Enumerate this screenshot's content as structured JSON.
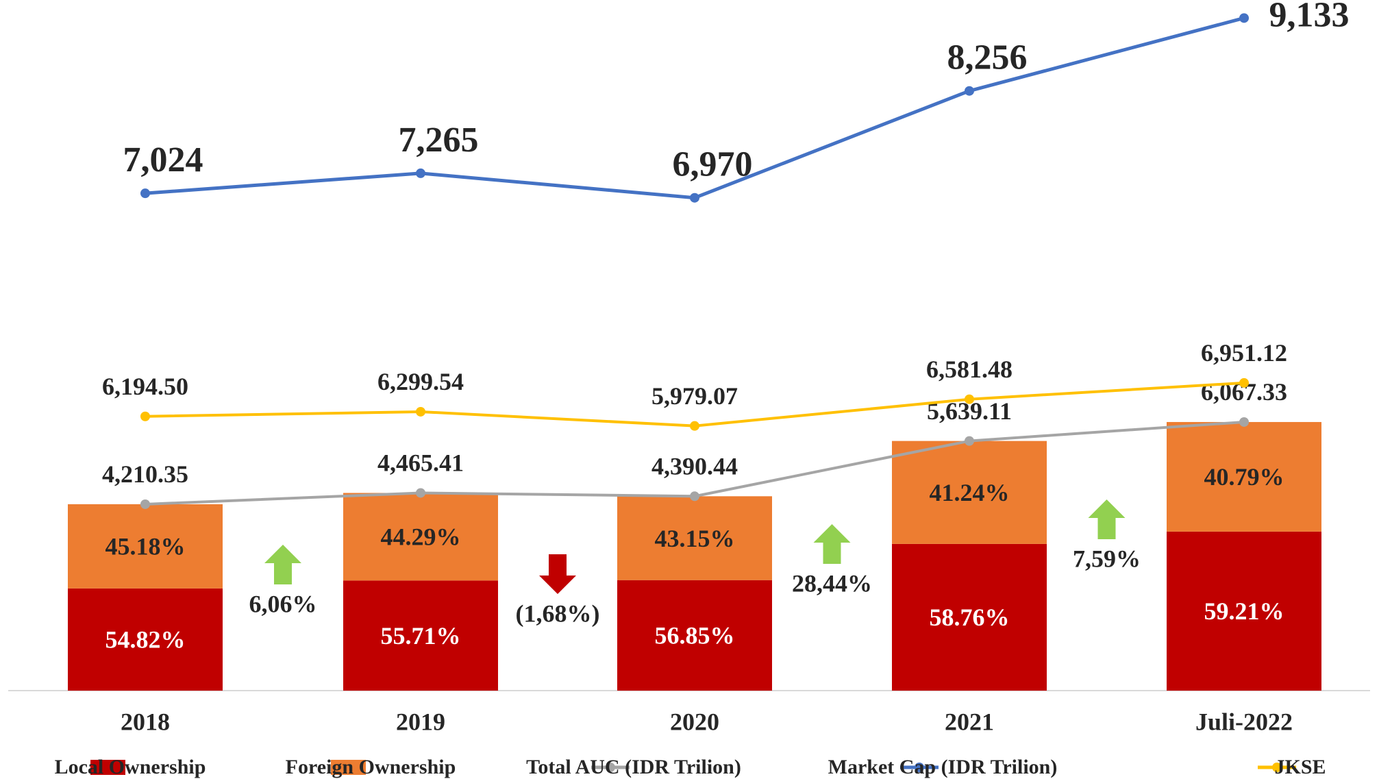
{
  "chart_data": {
    "type": "bar",
    "categories": [
      "2018",
      "2019",
      "2020",
      "2021",
      "Juli-2022"
    ],
    "ylim": [
      0,
      15600
    ],
    "y2lim": [
      1040,
      9350
    ],
    "series": [
      {
        "name": "Local Ownership",
        "type": "bar",
        "stack": true,
        "color": "#c00000",
        "values": [
          54.82,
          55.71,
          56.85,
          58.76,
          59.21
        ],
        "value_labels": [
          "54.82%",
          "55.71%",
          "56.85%",
          "58.76%",
          "59.21%"
        ]
      },
      {
        "name": "Foreign Ownership",
        "type": "bar",
        "stack": true,
        "color": "#ed7d31",
        "values": [
          45.18,
          44.29,
          43.15,
          41.24,
          40.79
        ],
        "value_labels": [
          "45.18%",
          "44.29%",
          "43.15%",
          "41.24%",
          "40.79%"
        ]
      },
      {
        "name": "Total AUC (IDR Trilion)",
        "type": "line",
        "color": "#a5a5a5",
        "values": [
          4210.35,
          4465.41,
          4390.44,
          5639.11,
          6067.33
        ],
        "value_labels": [
          "4,210.35",
          "4,465.41",
          "4,390.44",
          "5,639.11",
          "6,067.33"
        ]
      },
      {
        "name": "Market Cap (IDR Trilion)",
        "type": "line",
        "axis": "y2",
        "color": "#4472c4",
        "values": [
          7024,
          7265,
          6970,
          8256,
          9133
        ],
        "value_labels": [
          "7,024",
          "7,265",
          "6,970",
          "8,256",
          "9,133"
        ]
      },
      {
        "name": "JKSE",
        "type": "line",
        "color": "#ffc000",
        "values": [
          6194.5,
          6299.54,
          5979.07,
          6581.48,
          6951.12
        ],
        "value_labels": [
          "6,194.50",
          "6,299.54",
          "5,979.07",
          "6,581.48",
          "6,951.12"
        ]
      }
    ],
    "annotations": [
      {
        "text": "6,06%",
        "trend": "up"
      },
      {
        "text": "(1,68%)",
        "trend": "down"
      },
      {
        "text": "28,44%",
        "trend": "up"
      },
      {
        "text": "7,59%",
        "trend": "up"
      }
    ],
    "legend": "bottom"
  }
}
